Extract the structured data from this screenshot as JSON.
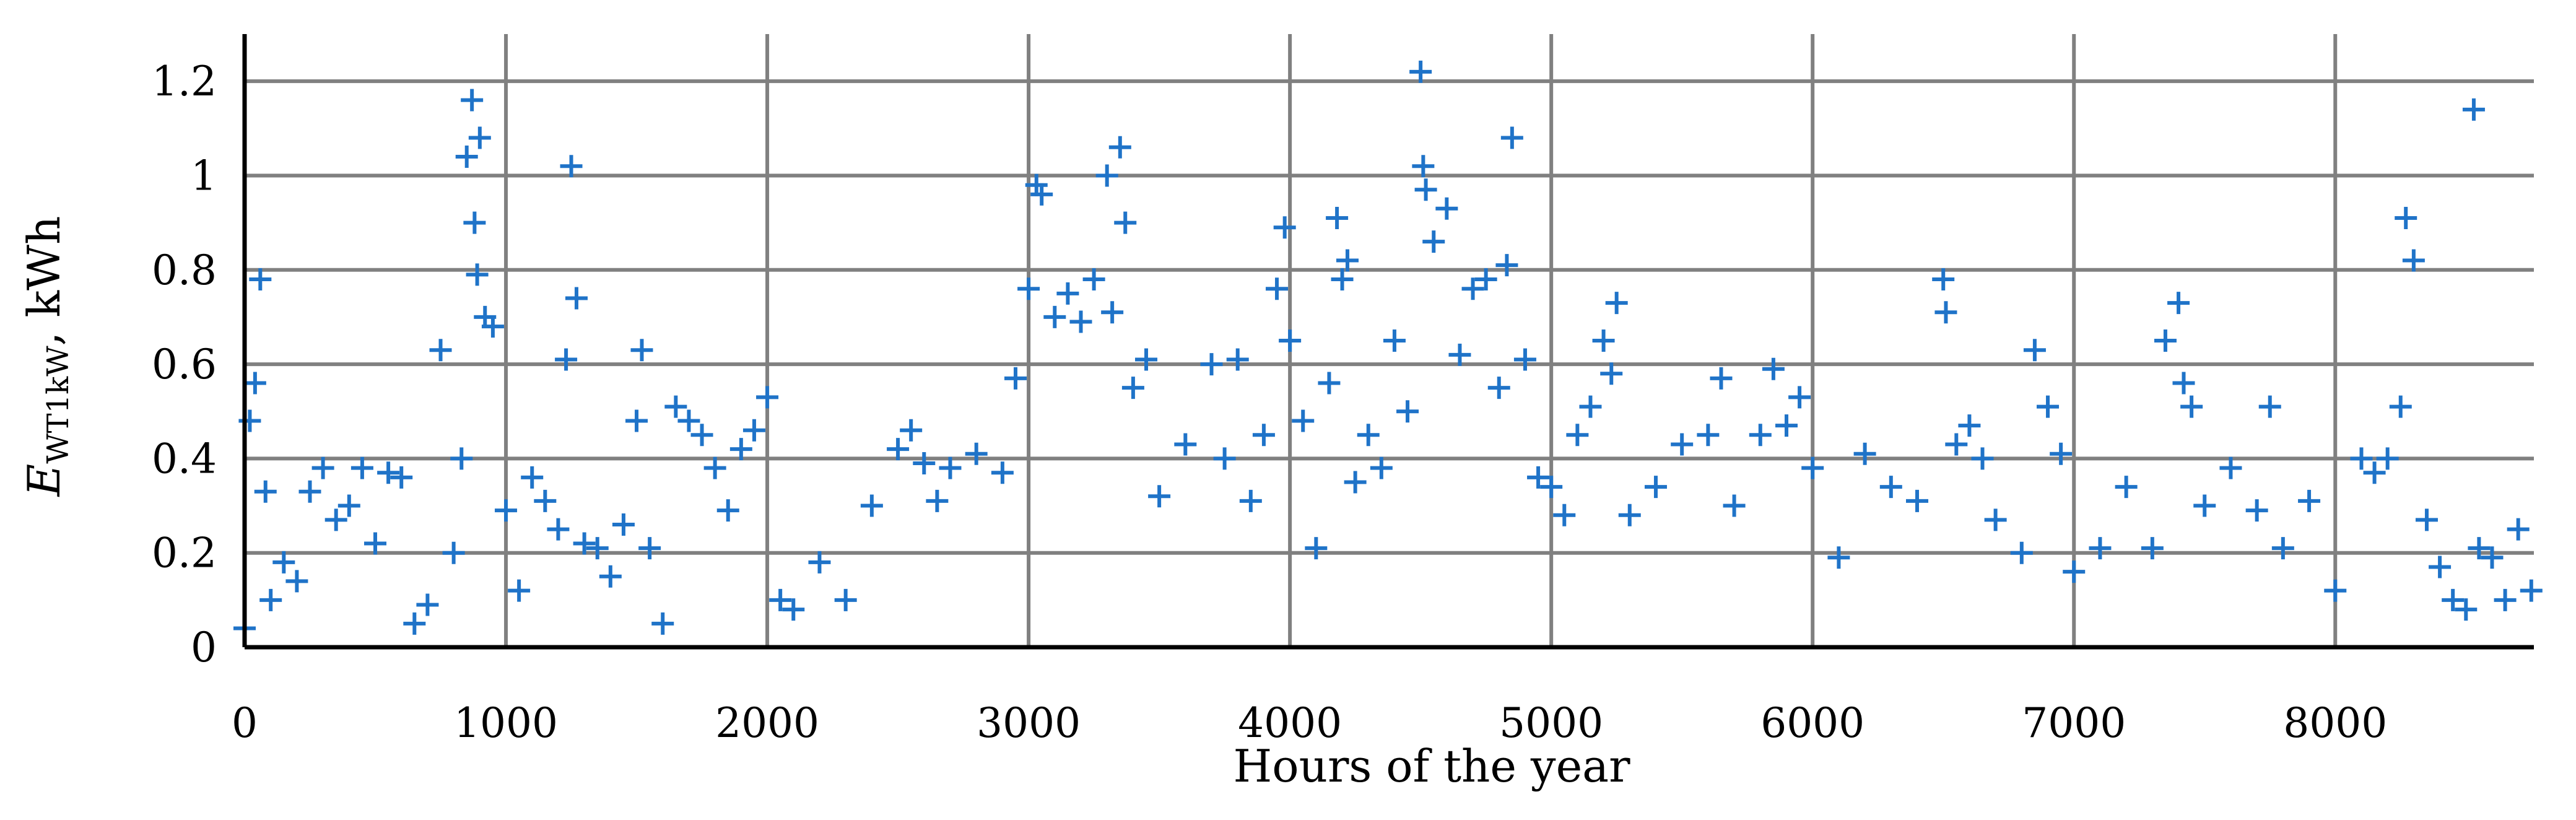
{
  "chart_data": {
    "type": "scatter",
    "marker": "plus",
    "color": "#1f73c8",
    "xlabel": "Hours of the year",
    "ylabel": {
      "main": "E",
      "subscript": "WT1kW",
      "suffix": ", kWh"
    },
    "xlim": [
      0,
      8760
    ],
    "ylim": [
      0,
      1.3
    ],
    "xticks": [
      "0",
      "1000",
      "2000",
      "3000",
      "4000",
      "5000",
      "6000",
      "7000",
      "8000"
    ],
    "yticks": [
      "0",
      "0.2",
      "0.4",
      "0.6",
      "0.8",
      "1",
      "1.2"
    ],
    "grid": true,
    "series": [
      {
        "x": [
          0,
          20,
          40,
          60,
          80,
          100,
          150,
          200,
          250,
          300,
          350,
          400,
          450,
          500,
          550,
          600,
          650,
          700,
          750,
          800,
          830,
          850,
          870,
          880,
          890,
          900,
          920,
          950,
          1000,
          1050,
          1100,
          1150,
          1200,
          1230,
          1250,
          1270,
          1300,
          1350,
          1400,
          1450,
          1500,
          1520,
          1550,
          1600,
          1650,
          1700,
          1750,
          1800,
          1850,
          1900,
          1950,
          2000,
          2050,
          2100,
          2200,
          2300,
          2400,
          2500,
          2550,
          2600,
          2650,
          2700,
          2800,
          2900,
          2950,
          3000,
          3030,
          3050,
          3100,
          3150,
          3200,
          3250,
          3300,
          3320,
          3350,
          3370,
          3400,
          3450,
          3500,
          3600,
          3700,
          3750,
          3800,
          3850,
          3900,
          3950,
          3980,
          4000,
          4050,
          4100,
          4150,
          4180,
          4200,
          4220,
          4250,
          4300,
          4350,
          4400,
          4450,
          4500,
          4510,
          4520,
          4550,
          4600,
          4650,
          4700,
          4750,
          4800,
          4830,
          4850,
          4900,
          4950,
          5000,
          5050,
          5100,
          5150,
          5200,
          5230,
          5250,
          5300,
          5400,
          5500,
          5600,
          5650,
          5700,
          5800,
          5850,
          5900,
          5950,
          6000,
          6100,
          6200,
          6300,
          6400,
          6500,
          6510,
          6550,
          6600,
          6650,
          6700,
          6800,
          6850,
          6900,
          6950,
          7000,
          7100,
          7200,
          7300,
          7350,
          7400,
          7420,
          7450,
          7500,
          7600,
          7700,
          7750,
          7800,
          7900,
          8000,
          8100,
          8150,
          8200,
          8250,
          8270,
          8300,
          8350,
          8400,
          8450,
          8500,
          8530,
          8550,
          8600,
          8650,
          8700,
          8750
        ],
        "y": [
          0.04,
          0.48,
          0.56,
          0.78,
          0.33,
          0.1,
          0.18,
          0.14,
          0.33,
          0.38,
          0.27,
          0.3,
          0.38,
          0.22,
          0.37,
          0.36,
          0.05,
          0.09,
          0.63,
          0.2,
          0.4,
          1.04,
          1.16,
          0.9,
          0.79,
          1.08,
          0.7,
          0.68,
          0.29,
          0.12,
          0.36,
          0.31,
          0.25,
          0.61,
          1.02,
          0.74,
          0.22,
          0.21,
          0.15,
          0.26,
          0.48,
          0.63,
          0.21,
          0.05,
          0.51,
          0.48,
          0.45,
          0.38,
          0.29,
          0.42,
          0.46,
          0.53,
          0.1,
          0.08,
          0.18,
          0.1,
          0.3,
          0.42,
          0.46,
          0.39,
          0.31,
          0.38,
          0.41,
          0.37,
          0.57,
          0.76,
          0.98,
          0.96,
          0.7,
          0.75,
          0.69,
          0.78,
          1.0,
          0.71,
          1.06,
          0.9,
          0.55,
          0.61,
          0.32,
          0.43,
          0.6,
          0.4,
          0.61,
          0.31,
          0.45,
          0.76,
          0.89,
          0.65,
          0.48,
          0.21,
          0.56,
          0.91,
          0.78,
          0.82,
          0.35,
          0.45,
          0.38,
          0.65,
          0.5,
          1.22,
          1.02,
          0.97,
          0.86,
          0.93,
          0.62,
          0.76,
          0.78,
          0.55,
          0.81,
          1.08,
          0.61,
          0.36,
          0.34,
          0.28,
          0.45,
          0.51,
          0.65,
          0.58,
          0.73,
          0.28,
          0.34,
          0.43,
          0.45,
          0.57,
          0.3,
          0.45,
          0.59,
          0.47,
          0.53,
          0.38,
          0.19,
          0.41,
          0.34,
          0.31,
          0.78,
          0.71,
          0.43,
          0.47,
          0.4,
          0.27,
          0.2,
          0.63,
          0.51,
          0.41,
          0.16,
          0.21,
          0.34,
          0.21,
          0.65,
          0.73,
          0.56,
          0.51,
          0.3,
          0.38,
          0.29,
          0.51,
          0.21,
          0.31,
          0.12,
          0.4,
          0.37,
          0.4,
          0.51,
          0.91,
          0.82,
          0.27,
          0.17,
          0.1,
          0.08,
          1.14,
          0.21,
          0.19,
          0.1,
          0.25,
          0.12
        ]
      }
    ]
  }
}
